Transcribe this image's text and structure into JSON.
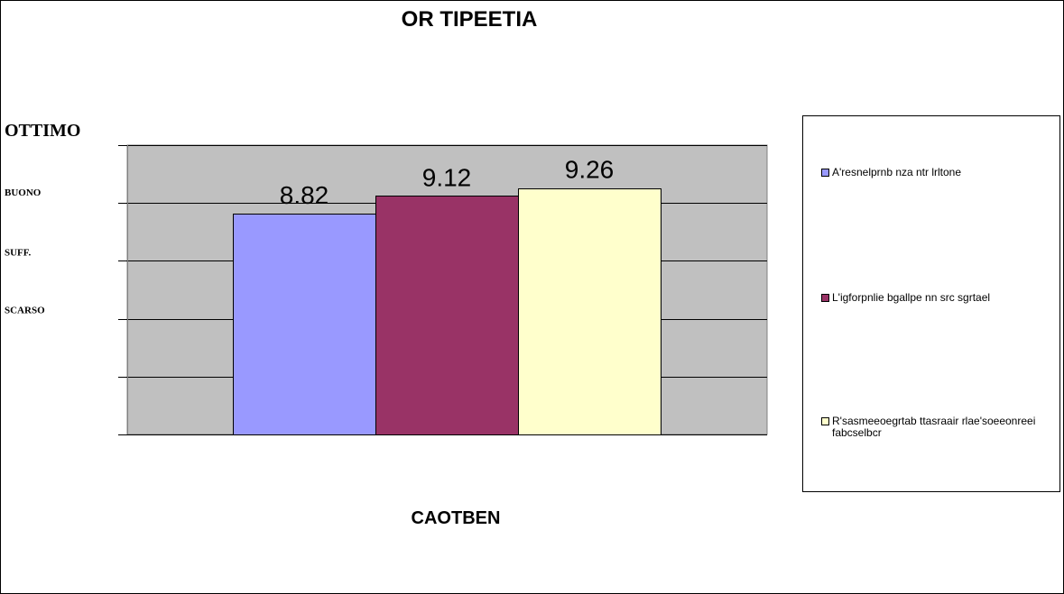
{
  "chart_data": {
    "type": "bar",
    "title": "OR TIPEETIA",
    "xlabel": "CAOTBEN",
    "ylabel": "",
    "categories": [
      ""
    ],
    "series": [
      {
        "name": "A'resnelprnb nza ntr lrltone",
        "values": [
          8.82
        ],
        "color": "#9999ff"
      },
      {
        "name": "L'igforpnlie bgallpe nn src sgrtael",
        "values": [
          9.12
        ],
        "color": "#993366"
      },
      {
        "name": "R'sasmeeoegrtab ttasraair rlae'soeeonreei fabcselbcr",
        "values": [
          9.26
        ],
        "color": "#ffffcc"
      }
    ],
    "ylim": [
      5,
      10
    ],
    "y_tick_values": [
      5,
      6,
      7,
      8,
      9,
      10
    ],
    "y_level_labels": [
      {
        "label": "OTTIMO",
        "value": 10
      },
      {
        "label": "BUONO",
        "value": 9
      },
      {
        "label": "SUFF.",
        "value": 8
      },
      {
        "label": "SCARSO",
        "value": 7
      }
    ],
    "data_labels": [
      "8.82",
      "9.12",
      "9.26"
    ],
    "grid": true,
    "plot_background": "#c0c0c0",
    "legend_position": "right"
  }
}
